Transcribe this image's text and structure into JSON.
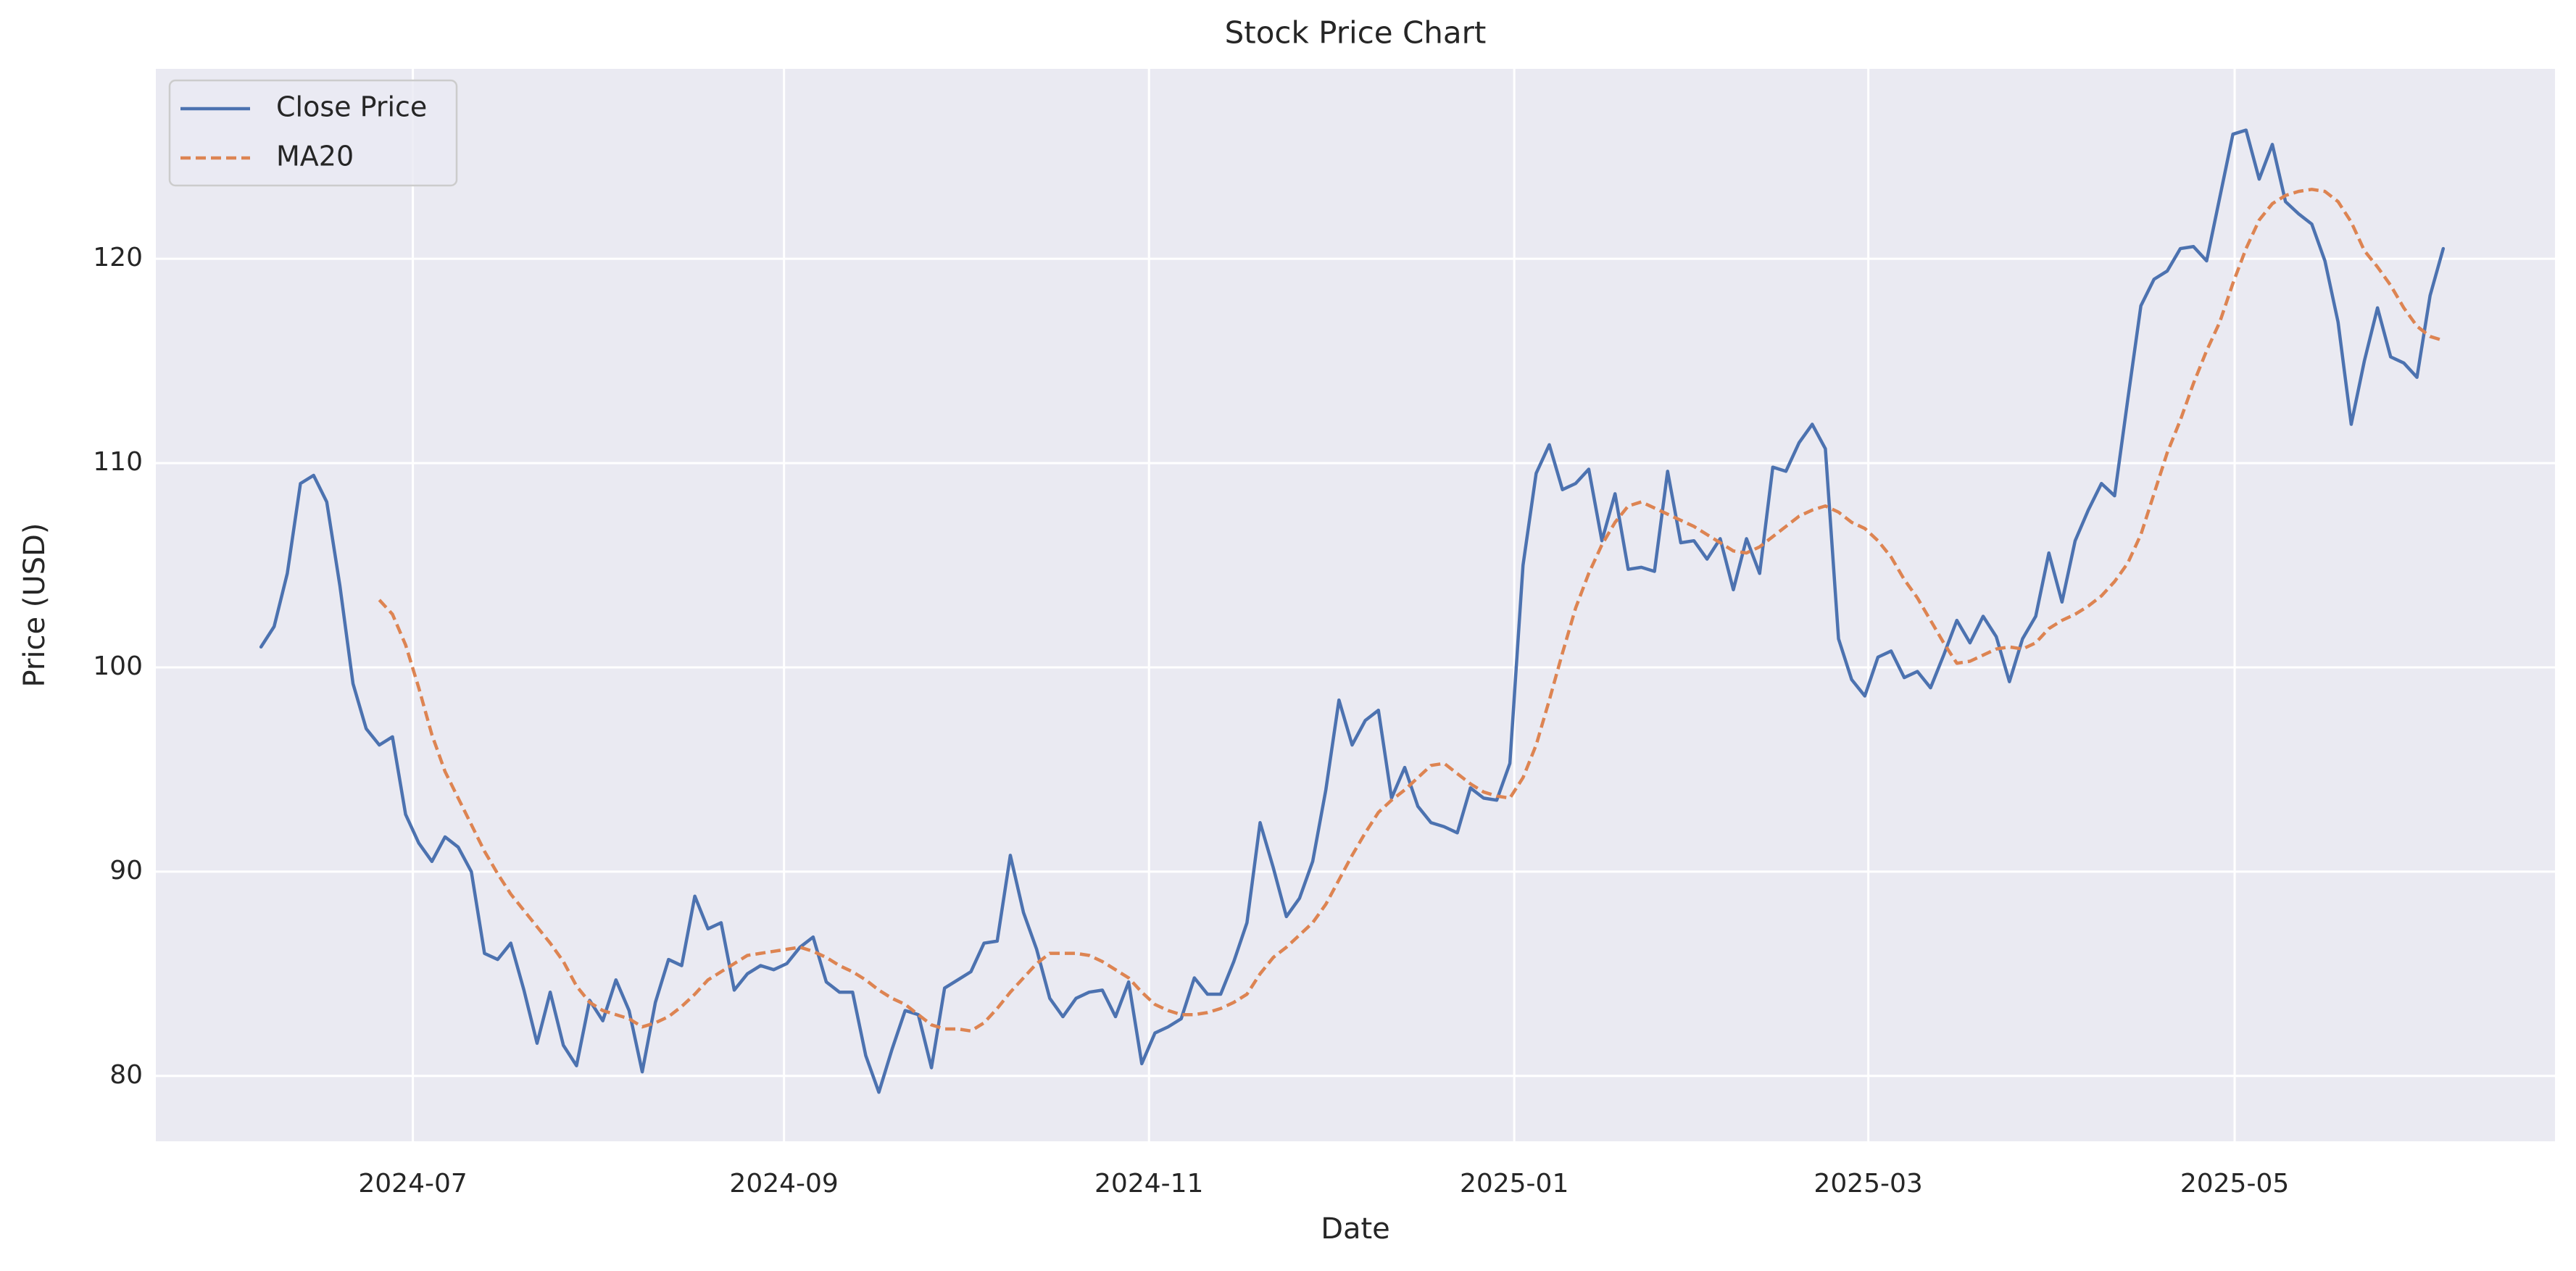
{
  "chart_data": {
    "type": "line",
    "title": "Stock Price Chart",
    "x_label": "Date",
    "y_label": "Price (USD)",
    "x": [
      2024.428,
      2024.434,
      2024.44,
      2024.446,
      2024.452,
      2024.458,
      2024.464,
      2024.47,
      2024.476,
      2024.482,
      2024.488,
      2024.494,
      2024.5,
      2024.506,
      2024.512,
      2024.518,
      2024.524,
      2024.53,
      2024.536,
      2024.542,
      2024.548,
      2024.554,
      2024.56,
      2024.566,
      2024.572,
      2024.578,
      2024.584,
      2024.59,
      2024.596,
      2024.602,
      2024.608,
      2024.614,
      2024.62,
      2024.626,
      2024.632,
      2024.638,
      2024.644,
      2024.65,
      2024.656,
      2024.662,
      2024.668,
      2024.674,
      2024.68,
      2024.686,
      2024.692,
      2024.698,
      2024.704,
      2024.71,
      2024.716,
      2024.722,
      2024.728,
      2024.734,
      2024.74,
      2024.746,
      2024.752,
      2024.758,
      2024.764,
      2024.77,
      2024.776,
      2024.782,
      2024.788,
      2024.794,
      2024.8,
      2024.806,
      2024.812,
      2024.818,
      2024.824,
      2024.83,
      2024.836,
      2024.842,
      2024.848,
      2024.854,
      2024.86,
      2024.866,
      2024.872,
      2024.878,
      2024.884,
      2024.89,
      2024.896,
      2024.902,
      2024.908,
      2024.914,
      2024.92,
      2024.926,
      2024.932,
      2024.938,
      2024.944,
      2024.95,
      2024.956,
      2024.962,
      2024.968,
      2024.974,
      2024.98,
      2024.986,
      2024.992,
      2024.998,
      2025.004,
      2025.01,
      2025.016,
      2025.022,
      2025.028,
      2025.034,
      2025.04,
      2025.046,
      2025.052,
      2025.058,
      2025.064,
      2025.07,
      2025.076,
      2025.082,
      2025.088,
      2025.094,
      2025.1,
      2025.106,
      2025.112,
      2025.118,
      2025.124,
      2025.13,
      2025.136,
      2025.142,
      2025.148,
      2025.154,
      2025.16,
      2025.166,
      2025.172,
      2025.178,
      2025.184,
      2025.19,
      2025.196,
      2025.202,
      2025.208,
      2025.214,
      2025.22,
      2025.226,
      2025.232,
      2025.238,
      2025.244,
      2025.25,
      2025.256,
      2025.262,
      2025.268,
      2025.274,
      2025.28,
      2025.286,
      2025.292,
      2025.298,
      2025.304,
      2025.31,
      2025.316,
      2025.322,
      2025.328,
      2025.334,
      2025.34,
      2025.346,
      2025.352,
      2025.358,
      2025.364,
      2025.37,
      2025.376,
      2025.382,
      2025.388,
      2025.394,
      2025.4,
      2025.406,
      2025.412,
      2025.418,
      2025.424
    ],
    "series": [
      {
        "name": "Close Price",
        "color": "#4c72b0",
        "dash": false,
        "values": [
          101.0,
          102.0,
          104.6,
          109.0,
          109.4,
          108.1,
          104.0,
          99.2,
          97.0,
          96.2,
          96.6,
          92.8,
          91.4,
          90.5,
          91.7,
          91.2,
          90.0,
          86.0,
          85.7,
          86.5,
          84.2,
          81.6,
          84.1,
          81.5,
          80.5,
          83.7,
          82.7,
          84.7,
          83.2,
          80.2,
          83.6,
          85.7,
          85.4,
          88.8,
          87.2,
          87.5,
          84.2,
          85.0,
          85.4,
          85.2,
          85.5,
          86.3,
          86.8,
          84.6,
          84.1,
          84.1,
          81.0,
          79.2,
          81.3,
          83.2,
          83.0,
          80.4,
          84.3,
          84.7,
          85.1,
          86.5,
          86.6,
          90.8,
          88.0,
          86.2,
          83.8,
          82.9,
          83.8,
          84.1,
          84.2,
          82.9,
          84.6,
          80.6,
          82.1,
          82.4,
          82.8,
          84.8,
          84.0,
          84.0,
          85.6,
          87.5,
          92.4,
          90.2,
          87.8,
          88.7,
          90.5,
          94.0,
          98.4,
          96.2,
          97.4,
          97.9,
          93.6,
          95.1,
          93.2,
          92.4,
          92.2,
          91.9,
          94.1,
          93.6,
          93.5,
          95.3,
          105.0,
          109.5,
          110.9,
          108.7,
          109.0,
          109.7,
          106.2,
          108.5,
          104.8,
          104.9,
          104.7,
          109.6,
          106.1,
          106.2,
          105.3,
          106.3,
          103.8,
          106.3,
          104.6,
          109.8,
          109.6,
          111.0,
          111.9,
          110.7,
          101.4,
          99.4,
          98.6,
          100.5,
          100.8,
          99.5,
          99.8,
          99.0,
          100.6,
          102.3,
          101.2,
          102.5,
          101.5,
          99.3,
          101.4,
          102.5,
          105.6,
          103.2,
          106.2,
          107.7,
          109.0,
          108.4,
          113.1,
          117.7,
          119.0,
          119.4,
          120.5,
          120.6,
          119.9,
          123.0,
          126.1,
          126.3,
          123.9,
          125.6,
          122.8,
          122.2,
          121.7,
          119.9,
          116.9,
          111.9,
          115.0,
          117.6,
          115.2,
          114.9,
          114.2,
          118.2,
          120.5
        ]
      },
      {
        "name": "MA20",
        "color": "#dd8452",
        "dash": true,
        "values": [
          null,
          null,
          null,
          null,
          null,
          null,
          null,
          null,
          null,
          103.3,
          102.6,
          101.1,
          99.0,
          96.7,
          94.9,
          93.6,
          92.3,
          91.0,
          89.9,
          88.9,
          88.1,
          87.3,
          86.5,
          85.6,
          84.4,
          83.6,
          83.2,
          83.0,
          82.8,
          82.4,
          82.6,
          82.9,
          83.4,
          84.0,
          84.7,
          85.1,
          85.5,
          85.9,
          86.0,
          86.1,
          86.2,
          86.3,
          86.1,
          85.8,
          85.4,
          85.1,
          84.7,
          84.2,
          83.8,
          83.5,
          83.0,
          82.5,
          82.3,
          82.3,
          82.2,
          82.6,
          83.3,
          84.1,
          84.8,
          85.5,
          86.0,
          86.0,
          86.0,
          85.9,
          85.6,
          85.2,
          84.8,
          84.1,
          83.5,
          83.2,
          83.0,
          83.0,
          83.1,
          83.3,
          83.6,
          84.0,
          85.0,
          85.8,
          86.3,
          86.9,
          87.5,
          88.4,
          89.6,
          90.8,
          91.9,
          92.9,
          93.5,
          94.0,
          94.6,
          95.2,
          95.3,
          94.8,
          94.3,
          93.9,
          93.7,
          93.6,
          94.6,
          96.2,
          98.4,
          100.7,
          102.9,
          104.6,
          106.0,
          107.1,
          107.9,
          108.1,
          107.8,
          107.5,
          107.2,
          106.9,
          106.5,
          106.1,
          105.7,
          105.6,
          105.9,
          106.4,
          106.9,
          107.4,
          107.7,
          107.9,
          107.6,
          107.1,
          106.8,
          106.2,
          105.4,
          104.3,
          103.4,
          102.3,
          101.2,
          100.2,
          100.3,
          100.6,
          100.9,
          101.0,
          100.9,
          101.2,
          101.9,
          102.3,
          102.6,
          103.0,
          103.5,
          104.2,
          105.1,
          106.5,
          108.5,
          110.5,
          112.1,
          113.9,
          115.5,
          116.9,
          118.8,
          120.5,
          121.9,
          122.7,
          123.1,
          123.3,
          123.4,
          123.3,
          122.8,
          121.8,
          120.4,
          119.6,
          118.7,
          117.6,
          116.7,
          116.2,
          116.0
        ]
      }
    ],
    "xlim": [
      2024.38,
      2025.475
    ],
    "xticks": [
      {
        "value": 2024.4973,
        "label": "2024-07"
      },
      {
        "value": 2024.6667,
        "label": "2024-09"
      },
      {
        "value": 2024.8333,
        "label": "2024-11"
      },
      {
        "value": 2025.0,
        "label": "2025-01"
      },
      {
        "value": 2025.1616,
        "label": "2025-03"
      },
      {
        "value": 2025.3288,
        "label": "2025-05"
      }
    ],
    "ylim": [
      76.8,
      129.3
    ],
    "yticks": [
      80,
      90,
      100,
      110,
      120
    ],
    "grid": true,
    "legend": "upper left",
    "background": "#eaeaf2"
  }
}
